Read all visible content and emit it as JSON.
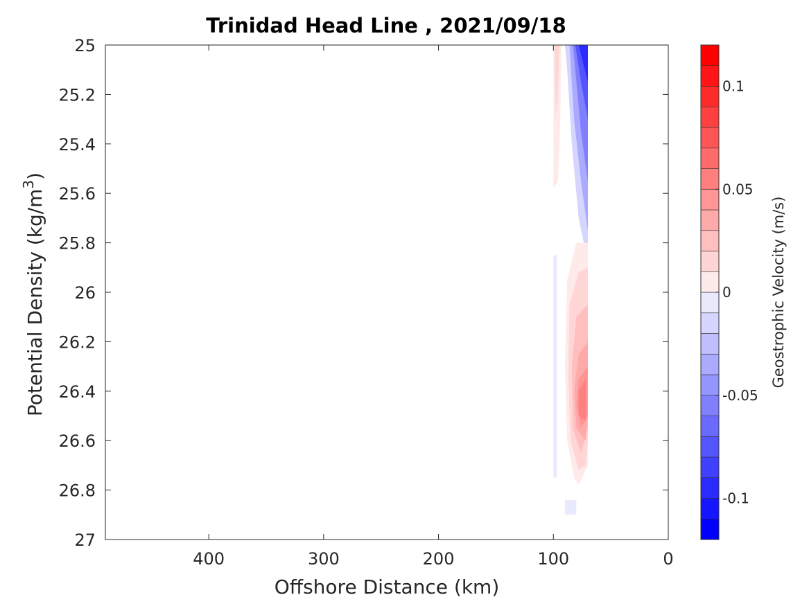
{
  "chart_data": {
    "type": "contour",
    "title": "Trinidad Head Line , 2021/09/18",
    "xlabel": "Offshore Distance (km)",
    "ylabel_main": "Potential Density (kg/m",
    "ylabel_sup": "3",
    "ylabel_close": ")",
    "colorbar_label": "Geostrophic Velocity (m/s)",
    "x_reversed": true,
    "xlim": [
      490,
      0
    ],
    "ylim": [
      27,
      25
    ],
    "y_reversed": true,
    "x_ticks": [
      400,
      300,
      200,
      100,
      0
    ],
    "x_tick_labels": [
      "400",
      "300",
      "200",
      "100",
      "0"
    ],
    "y_ticks": [
      25,
      25.2,
      25.4,
      25.6,
      25.8,
      26,
      26.2,
      26.4,
      26.6,
      26.8,
      27
    ],
    "y_tick_labels": [
      "25",
      "25.2",
      "25.4",
      "25.6",
      "25.8",
      "26",
      "26.2",
      "26.4",
      "26.6",
      "26.8",
      "27"
    ],
    "colorbar": {
      "range": [
        -0.12,
        0.12
      ],
      "step": 0.01,
      "ticks": [
        0.1,
        0.05,
        0,
        -0.05,
        -0.1
      ],
      "tick_labels": [
        "0.1",
        "0.05",
        "0",
        "-0.05",
        "-0.1"
      ]
    },
    "grid": false,
    "contour_regions": [
      {
        "sign": "negative",
        "level": -0.02,
        "points": [
          [
            90,
            25
          ],
          [
            70,
            25
          ],
          [
            70,
            25.88
          ],
          [
            78,
            25.7
          ],
          [
            84,
            25.4
          ],
          [
            88,
            25.1
          ]
        ]
      },
      {
        "sign": "negative",
        "level": -0.04,
        "points": [
          [
            86,
            25
          ],
          [
            70,
            25
          ],
          [
            70,
            25.75
          ],
          [
            76,
            25.55
          ],
          [
            82,
            25.3
          ]
        ]
      },
      {
        "sign": "negative",
        "level": -0.06,
        "points": [
          [
            83,
            25
          ],
          [
            70,
            25
          ],
          [
            70,
            25.55
          ],
          [
            76,
            25.35
          ],
          [
            80,
            25.15
          ]
        ]
      },
      {
        "sign": "negative",
        "level": -0.08,
        "points": [
          [
            81,
            25
          ],
          [
            70,
            25
          ],
          [
            70,
            25.3
          ],
          [
            76,
            25.15
          ]
        ]
      },
      {
        "sign": "negative",
        "level": -0.1,
        "points": [
          [
            78,
            25
          ],
          [
            70,
            25
          ],
          [
            70,
            25.15
          ]
        ]
      },
      {
        "sign": "negative",
        "level": -0.01,
        "points": [
          [
            100,
            25.85
          ],
          [
            97,
            25.85
          ],
          [
            97,
            26.75
          ],
          [
            100,
            26.75
          ]
        ]
      },
      {
        "sign": "negative",
        "level": -0.01,
        "points": [
          [
            90,
            26.84
          ],
          [
            80,
            26.84
          ],
          [
            80,
            26.9
          ],
          [
            90,
            26.9
          ]
        ]
      },
      {
        "sign": "positive",
        "level": 0.01,
        "points": [
          [
            100,
            25
          ],
          [
            93,
            25
          ],
          [
            94,
            25.3
          ],
          [
            96,
            25.55
          ],
          [
            100,
            25.58
          ]
        ]
      },
      {
        "sign": "positive",
        "level": 0.02,
        "points": [
          [
            99,
            25
          ],
          [
            95,
            25
          ],
          [
            96,
            25.2
          ],
          [
            98,
            25.3
          ]
        ]
      },
      {
        "sign": "positive",
        "level": 0.01,
        "points": [
          [
            70,
            25.8
          ],
          [
            80,
            25.8
          ],
          [
            88,
            25.95
          ],
          [
            90,
            26.3
          ],
          [
            88,
            26.6
          ],
          [
            82,
            26.75
          ],
          [
            78,
            26.78
          ],
          [
            70,
            26.7
          ]
        ]
      },
      {
        "sign": "positive",
        "level": 0.02,
        "points": [
          [
            70,
            25.9
          ],
          [
            78,
            25.92
          ],
          [
            86,
            26.05
          ],
          [
            87,
            26.35
          ],
          [
            85,
            26.6
          ],
          [
            78,
            26.72
          ],
          [
            72,
            26.7
          ],
          [
            70,
            26.6
          ]
        ]
      },
      {
        "sign": "positive",
        "level": 0.03,
        "points": [
          [
            70,
            26.05
          ],
          [
            80,
            26.1
          ],
          [
            84,
            26.3
          ],
          [
            83,
            26.55
          ],
          [
            76,
            26.65
          ],
          [
            70,
            26.55
          ]
        ]
      },
      {
        "sign": "positive",
        "level": 0.04,
        "points": [
          [
            70,
            26.2
          ],
          [
            78,
            26.25
          ],
          [
            82,
            26.4
          ],
          [
            80,
            26.55
          ],
          [
            72,
            26.6
          ],
          [
            70,
            26.5
          ]
        ]
      },
      {
        "sign": "positive",
        "level": 0.05,
        "points": [
          [
            70,
            26.3
          ],
          [
            78,
            26.35
          ],
          [
            80,
            26.45
          ],
          [
            76,
            26.55
          ],
          [
            70,
            26.5
          ]
        ]
      },
      {
        "sign": "positive",
        "level": 0.06,
        "points": [
          [
            72,
            26.35
          ],
          [
            78,
            26.4
          ],
          [
            78,
            26.5
          ],
          [
            72,
            26.52
          ]
        ]
      }
    ],
    "colors": {
      "positive_max": "#ff0000",
      "negative_max": "#0000ff",
      "neutral": "#ffffff",
      "axis": "#262626",
      "colorbar_edge": "#333333"
    }
  }
}
